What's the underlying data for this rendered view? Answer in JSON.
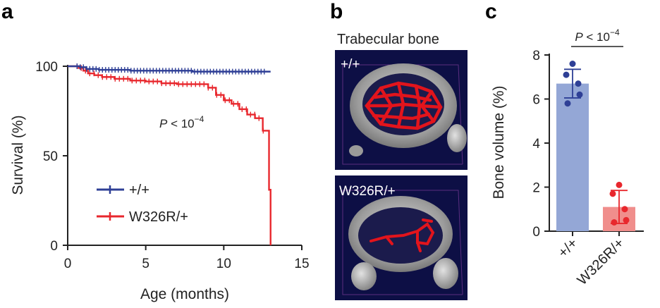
{
  "panels": {
    "a": {
      "letter": "a",
      "chart_data": {
        "type": "line",
        "title": "",
        "xlabel": "Age (months)",
        "ylabel": "Survival (%)",
        "xlim": [
          0,
          15
        ],
        "ylim": [
          0,
          100
        ],
        "xticks": [
          0,
          5,
          10,
          15
        ],
        "yticks": [
          0,
          50,
          100
        ],
        "legend_placement": "bottom-left",
        "annotation": {
          "prefix": "P",
          "text": " < 10",
          "exponent": "−4"
        },
        "series": [
          {
            "name": "+/+",
            "color": "#2e3f96",
            "x": [
              0,
              0.8,
              1.2,
              2,
              4,
              6,
              8,
              10,
              12,
              13
            ],
            "y": [
              100,
              99.5,
              98.5,
              98,
              97.5,
              97.5,
              97,
              97,
              97,
              97
            ]
          },
          {
            "name": "W326R/+",
            "color": "#e8272d",
            "x": [
              0,
              0.7,
              1,
              1.3,
              1.7,
              2.2,
              3,
              4,
              5,
              6,
              7,
              8.5,
              9,
              9.5,
              10,
              10.5,
              11,
              11.5,
              12,
              12.5,
              12.9,
              13
            ],
            "y": [
              100,
              99,
              97.5,
              96,
              95,
              94,
              93,
              92,
              91.5,
              90.5,
              90,
              90,
              88,
              84,
              81,
              79,
              76,
              73,
              71,
              64,
              31,
              0
            ]
          }
        ]
      }
    },
    "b": {
      "letter": "b",
      "title": "Trabecular bone",
      "images": [
        {
          "label": "+/+"
        },
        {
          "label": "W326R/+"
        }
      ]
    },
    "c": {
      "letter": "c",
      "chart_data": {
        "type": "bar",
        "title": "",
        "xlabel": "",
        "ylabel": "Bone volume (%)",
        "ylim": [
          0,
          8
        ],
        "yticks": [
          0,
          2,
          4,
          6,
          8
        ],
        "categories": [
          "+/+",
          "W326R/+"
        ],
        "values": [
          6.7,
          1.1
        ],
        "errors": [
          0.65,
          0.75
        ],
        "points": [
          [
            7.6,
            7.1,
            6.7,
            6.2,
            5.8
          ],
          [
            2.1,
            1.7,
            1.0,
            0.5,
            0.4
          ]
        ],
        "bar_colors": [
          "#94a7d6",
          "#f08e8c"
        ],
        "point_colors": [
          "#2e3f96",
          "#e8272d"
        ],
        "annotation": {
          "prefix": "P",
          "text": " < 10",
          "exponent": "−4"
        }
      }
    }
  }
}
